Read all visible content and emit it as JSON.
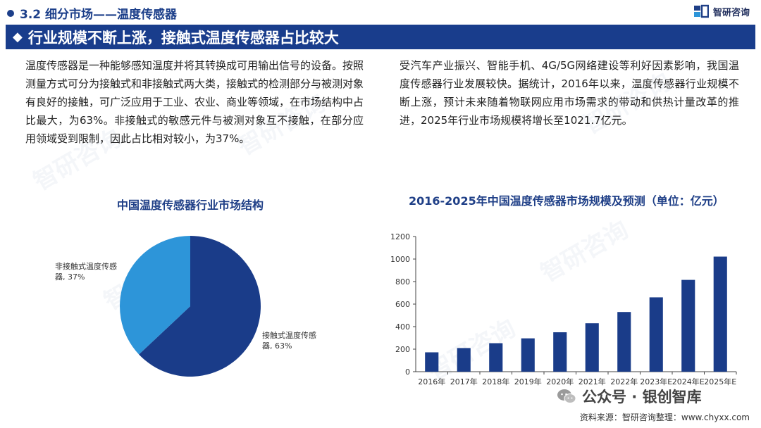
{
  "header": {
    "section_title": "3.2 细分市场——温度传感器",
    "logo_text": "智研咨询"
  },
  "banner": {
    "title": "行业规模不断上涨，接触式温度传感器占比较大"
  },
  "body_text": {
    "left": "温度传感器是一种能够感知温度并将其转换成可用输出信号的设备。按照测量方式可分为接触式和非接触式两大类，接触式的检测部分与被测对象有良好的接触，可广泛应用于工业、农业、商业等领域，在市场结构中占比最大，为63%。非接触式的敏感元件与被测对象互不接触，在部分应用领域受到限制，因此占比相对较小，为37%。",
    "right": "受汽车产业振兴、智能手机、4G/5G网络建设等利好因素影响，我国温度传感器行业发展较快。据统计，2016年以来，温度传感器行业规模不断上涨，预计未来随着物联网应用市场需求的带动和供热计量改革的推进，2025年行业市场规模将增长至1021.7亿元。"
  },
  "watermark_text": "智研咨询",
  "chart_data": [
    {
      "type": "pie",
      "title": "中国温度传感器行业市场结构",
      "slices": [
        {
          "label": "接触式温度传感器",
          "value": 63,
          "display": "接触式温度传感器, 63%",
          "color": "#1a3c89"
        },
        {
          "label": "非接触式温度传感器",
          "value": 37,
          "display": "非接触式温度传感器, 37%",
          "color": "#2d95d9"
        }
      ]
    },
    {
      "type": "bar",
      "title": "2016-2025年中国温度传感器市场规模及预测（单位：亿元）",
      "categories": [
        "2016年",
        "2017年",
        "2018年",
        "2019年",
        "2020年",
        "2021年",
        "2022年",
        "2023年E",
        "2024年E",
        "2025年E"
      ],
      "values": [
        172,
        210,
        253,
        296,
        350,
        430,
        530,
        660,
        815,
        1021.7
      ],
      "ylim": [
        0,
        1200
      ],
      "yticks": [
        0,
        200,
        400,
        600,
        800,
        1000,
        1200
      ],
      "bar_color": "#1a3c89",
      "grid": false,
      "xlabel": "",
      "ylabel": ""
    }
  ],
  "footer": {
    "brand": "公众号 · 银创智库",
    "source": "资料来源：智研咨询整理：www.chyxx.com"
  }
}
